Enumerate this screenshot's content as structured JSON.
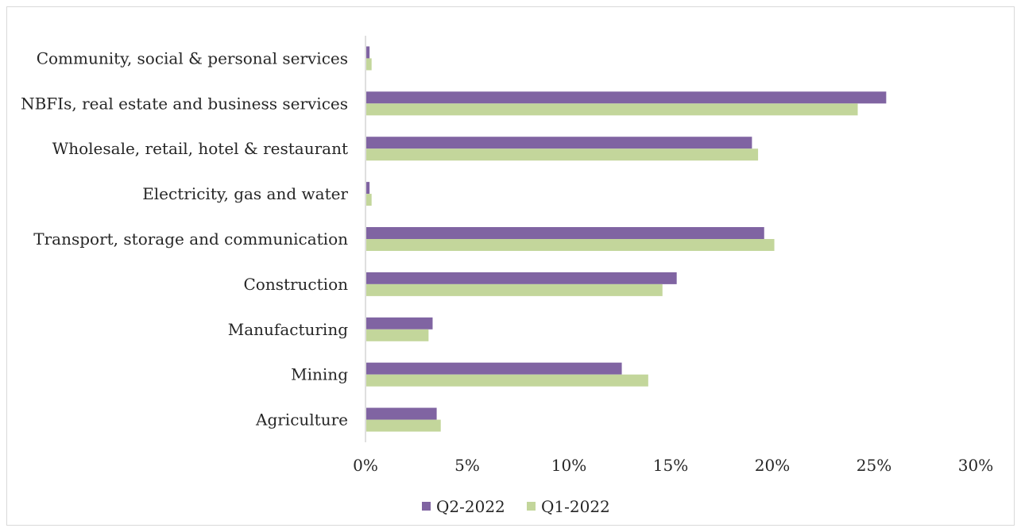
{
  "chart_data": {
    "type": "bar",
    "orientation": "horizontal",
    "categories": [
      "Agriculture",
      "Mining",
      "Manufacturing",
      "Construction",
      "Transport, storage and communication",
      "Electricity, gas and water",
      "Wholesale, retail, hotel & restaurant",
      "NBFIs, real estate and business services",
      "Community, social & personal services"
    ],
    "series": [
      {
        "name": "Q2-2022",
        "color": "#8064a2",
        "values": [
          3.5,
          12.6,
          3.3,
          15.3,
          19.6,
          0.2,
          19.0,
          25.6,
          0.2
        ]
      },
      {
        "name": "Q1-2022",
        "color": "#c3d69b",
        "values": [
          3.7,
          13.9,
          3.1,
          14.6,
          20.1,
          0.3,
          19.3,
          24.2,
          0.3
        ]
      }
    ],
    "xlim": [
      0,
      30
    ],
    "x_ticks": [
      "0%",
      "5%",
      "10%",
      "15%",
      "20%",
      "25%",
      "30%"
    ],
    "grid": false,
    "legend_position": "bottom"
  }
}
